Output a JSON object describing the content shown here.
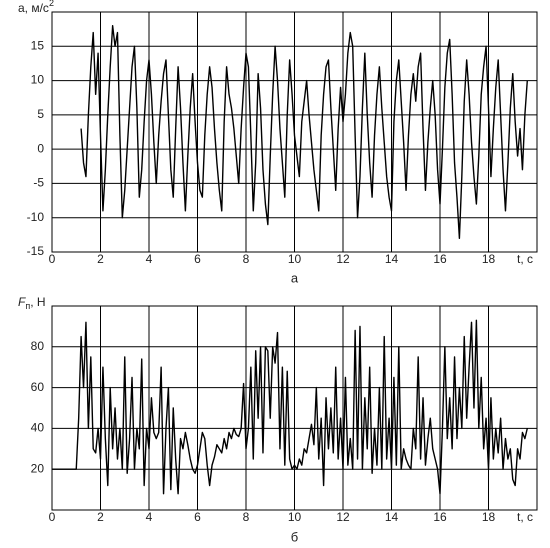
{
  "chart_data": [
    {
      "type": "line",
      "subtitle": "а",
      "ylabel": "a, м/с",
      "ylabel_sup": "2",
      "xlabel": "t, c",
      "color": "#000000",
      "grid": true,
      "xlim": [
        0,
        20
      ],
      "xticks": [
        0,
        2,
        4,
        6,
        8,
        10,
        12,
        14,
        16,
        18
      ],
      "ylim": [
        -15,
        20
      ],
      "yticks": [
        -15,
        -10,
        -5,
        0,
        5,
        10,
        15
      ],
      "x": [
        1.2,
        1.3,
        1.4,
        1.5,
        1.6,
        1.7,
        1.8,
        1.9,
        2.0,
        2.1,
        2.2,
        2.3,
        2.4,
        2.5,
        2.6,
        2.7,
        2.8,
        2.9,
        3.0,
        3.1,
        3.2,
        3.3,
        3.4,
        3.5,
        3.6,
        3.7,
        3.8,
        3.9,
        4.0,
        4.1,
        4.2,
        4.3,
        4.4,
        4.5,
        4.6,
        4.7,
        4.8,
        4.9,
        5.0,
        5.1,
        5.2,
        5.3,
        5.4,
        5.5,
        5.6,
        5.7,
        5.8,
        5.9,
        6.0,
        6.1,
        6.2,
        6.3,
        6.4,
        6.5,
        6.6,
        6.7,
        6.8,
        6.9,
        7.0,
        7.1,
        7.2,
        7.3,
        7.4,
        7.5,
        7.6,
        7.7,
        7.8,
        7.9,
        8.0,
        8.1,
        8.2,
        8.3,
        8.4,
        8.5,
        8.6,
        8.7,
        8.8,
        8.9,
        9.0,
        9.1,
        9.2,
        9.3,
        9.4,
        9.5,
        9.6,
        9.7,
        9.8,
        9.9,
        10.0,
        10.1,
        10.2,
        10.3,
        10.4,
        10.5,
        10.6,
        10.7,
        10.8,
        10.9,
        11.0,
        11.1,
        11.2,
        11.3,
        11.4,
        11.5,
        11.6,
        11.7,
        11.8,
        11.9,
        12.0,
        12.1,
        12.2,
        12.3,
        12.4,
        12.5,
        12.6,
        12.7,
        12.8,
        12.9,
        13.0,
        13.1,
        13.2,
        13.3,
        13.4,
        13.5,
        13.6,
        13.7,
        13.8,
        13.9,
        14.0,
        14.1,
        14.2,
        14.3,
        14.4,
        14.5,
        14.6,
        14.7,
        14.8,
        14.9,
        15.0,
        15.1,
        15.2,
        15.3,
        15.4,
        15.5,
        15.6,
        15.7,
        15.8,
        15.9,
        16.0,
        16.1,
        16.2,
        16.3,
        16.4,
        16.5,
        16.6,
        16.7,
        16.8,
        16.9,
        17.0,
        17.1,
        17.2,
        17.3,
        17.4,
        17.5,
        17.6,
        17.7,
        17.8,
        17.9,
        18.0,
        18.1,
        18.2,
        18.3,
        18.4,
        18.5,
        18.6,
        18.7,
        18.8,
        18.9,
        19.0,
        19.1,
        19.2,
        19.3,
        19.4,
        19.5,
        19.6
      ],
      "values": [
        3,
        -2,
        -4,
        5,
        12,
        17,
        8,
        14,
        2,
        -9,
        -3,
        5,
        12,
        18,
        15,
        17,
        2,
        -10,
        -6,
        0,
        6,
        12,
        15,
        6,
        -7,
        -3,
        4,
        10,
        13,
        8,
        1,
        -5,
        2,
        7,
        11,
        13,
        5,
        -3,
        -7,
        3,
        12,
        6,
        -2,
        -9,
        -1,
        6,
        11,
        4,
        -2,
        -6,
        -7,
        2,
        8,
        12,
        9,
        3,
        -2,
        -6,
        -9,
        4,
        12,
        8,
        6,
        3,
        -1,
        -5,
        3,
        9,
        14,
        12,
        2,
        -9,
        -2,
        11,
        6,
        -3,
        -8,
        -11,
        -1,
        8,
        15,
        10,
        3,
        -2,
        -7,
        5,
        13,
        8,
        2,
        -1,
        -4,
        4,
        7,
        10,
        5,
        1,
        -3,
        -6,
        -9,
        2,
        8,
        12,
        13,
        6,
        0,
        -6,
        3,
        9,
        4,
        8,
        14,
        17,
        15,
        2,
        -10,
        -4,
        6,
        14,
        5,
        -2,
        -7,
        2,
        8,
        12,
        6,
        1,
        -4,
        -7,
        -9,
        4,
        10,
        13,
        7,
        1,
        -6,
        2,
        8,
        11,
        7,
        12,
        14,
        3,
        -6,
        1,
        6,
        10,
        5,
        -3,
        -8,
        0,
        9,
        14,
        16,
        8,
        -2,
        -7,
        -13,
        -4,
        7,
        13,
        8,
        1,
        -4,
        -8,
        -1,
        8,
        12,
        15,
        6,
        -4,
        3,
        9,
        13,
        5,
        -3,
        -9,
        -2,
        6,
        11,
        4,
        -1,
        3,
        -3,
        5,
        10
      ]
    },
    {
      "type": "line",
      "subtitle": "б",
      "ylabel": "F",
      "ylabel_sub": "п",
      "ylabel_suffix": ", Н",
      "xlabel": "t, c",
      "color": "#000000",
      "grid": true,
      "xlim": [
        0,
        20
      ],
      "xticks": [
        0,
        2,
        4,
        6,
        8,
        10,
        12,
        14,
        16,
        18
      ],
      "ylim": [
        0,
        100
      ],
      "yticks": [
        20,
        40,
        60,
        80
      ],
      "x": [
        0,
        1.0,
        1.1,
        1.2,
        1.3,
        1.4,
        1.5,
        1.6,
        1.7,
        1.8,
        1.9,
        2.0,
        2.1,
        2.2,
        2.3,
        2.4,
        2.5,
        2.6,
        2.7,
        2.8,
        2.9,
        3.0,
        3.1,
        3.2,
        3.3,
        3.4,
        3.5,
        3.6,
        3.7,
        3.8,
        3.9,
        4.0,
        4.1,
        4.2,
        4.3,
        4.4,
        4.5,
        4.6,
        4.7,
        4.8,
        4.9,
        5.0,
        5.1,
        5.2,
        5.3,
        5.4,
        5.5,
        5.6,
        5.7,
        5.8,
        5.9,
        6.0,
        6.1,
        6.2,
        6.3,
        6.4,
        6.5,
        6.6,
        6.7,
        6.8,
        6.9,
        7.0,
        7.1,
        7.2,
        7.3,
        7.4,
        7.5,
        7.6,
        7.7,
        7.8,
        7.9,
        8.0,
        8.1,
        8.2,
        8.3,
        8.4,
        8.5,
        8.6,
        8.7,
        8.8,
        8.9,
        9.0,
        9.1,
        9.2,
        9.3,
        9.4,
        9.5,
        9.6,
        9.7,
        9.8,
        9.9,
        10.0,
        10.1,
        10.2,
        10.3,
        10.4,
        10.5,
        10.6,
        10.7,
        10.8,
        10.9,
        11.0,
        11.1,
        11.2,
        11.3,
        11.4,
        11.5,
        11.6,
        11.7,
        11.8,
        11.9,
        12.0,
        12.1,
        12.2,
        12.3,
        12.4,
        12.5,
        12.6,
        12.7,
        12.8,
        12.9,
        13.0,
        13.1,
        13.2,
        13.3,
        13.4,
        13.5,
        13.6,
        13.7,
        13.8,
        13.9,
        14.0,
        14.1,
        14.2,
        14.3,
        14.4,
        14.5,
        14.6,
        14.7,
        14.8,
        14.9,
        15.0,
        15.1,
        15.2,
        15.3,
        15.4,
        15.5,
        15.6,
        15.7,
        15.8,
        15.9,
        16.0,
        16.1,
        16.2,
        16.3,
        16.4,
        16.5,
        16.6,
        16.7,
        16.8,
        16.9,
        17.0,
        17.1,
        17.2,
        17.3,
        17.4,
        17.5,
        17.6,
        17.7,
        17.8,
        17.9,
        18.0,
        18.1,
        18.2,
        18.3,
        18.4,
        18.5,
        18.6,
        18.7,
        18.8,
        18.9,
        19.0,
        19.1,
        19.2,
        19.3,
        19.4,
        19.5,
        19.6
      ],
      "values": [
        20,
        20,
        45,
        85,
        60,
        92,
        40,
        75,
        30,
        28,
        40,
        25,
        70,
        35,
        12,
        60,
        30,
        50,
        25,
        40,
        20,
        75,
        18,
        35,
        65,
        20,
        40,
        30,
        74,
        12,
        40,
        30,
        55,
        38,
        35,
        38,
        70,
        8,
        40,
        60,
        10,
        50,
        25,
        8,
        35,
        30,
        38,
        32,
        25,
        20,
        18,
        22,
        30,
        38,
        35,
        22,
        12,
        22,
        26,
        32,
        30,
        28,
        35,
        30,
        38,
        35,
        40,
        37,
        36,
        40,
        62,
        30,
        40,
        70,
        25,
        78,
        45,
        80,
        28,
        80,
        78,
        45,
        80,
        72,
        87,
        30,
        70,
        22,
        68,
        25,
        20,
        22,
        20,
        25,
        22,
        30,
        28,
        35,
        42,
        32,
        60,
        25,
        45,
        12,
        55,
        30,
        50,
        28,
        70,
        25,
        45,
        20,
        65,
        22,
        35,
        20,
        88,
        25,
        90,
        20,
        55,
        30,
        70,
        18,
        40,
        22,
        60,
        20,
        85,
        25,
        45,
        20,
        65,
        22,
        80,
        20,
        30,
        25,
        22,
        20,
        40,
        30,
        75,
        25,
        55,
        22,
        35,
        45,
        30,
        25,
        20,
        8,
        40,
        80,
        35,
        55,
        30,
        75,
        35,
        60,
        40,
        85,
        45,
        70,
        92,
        50,
        93,
        40,
        65,
        30,
        45,
        20,
        55,
        25,
        40,
        28,
        45,
        20,
        35,
        25,
        30,
        15,
        12,
        30,
        25,
        38,
        35,
        40
      ]
    }
  ]
}
